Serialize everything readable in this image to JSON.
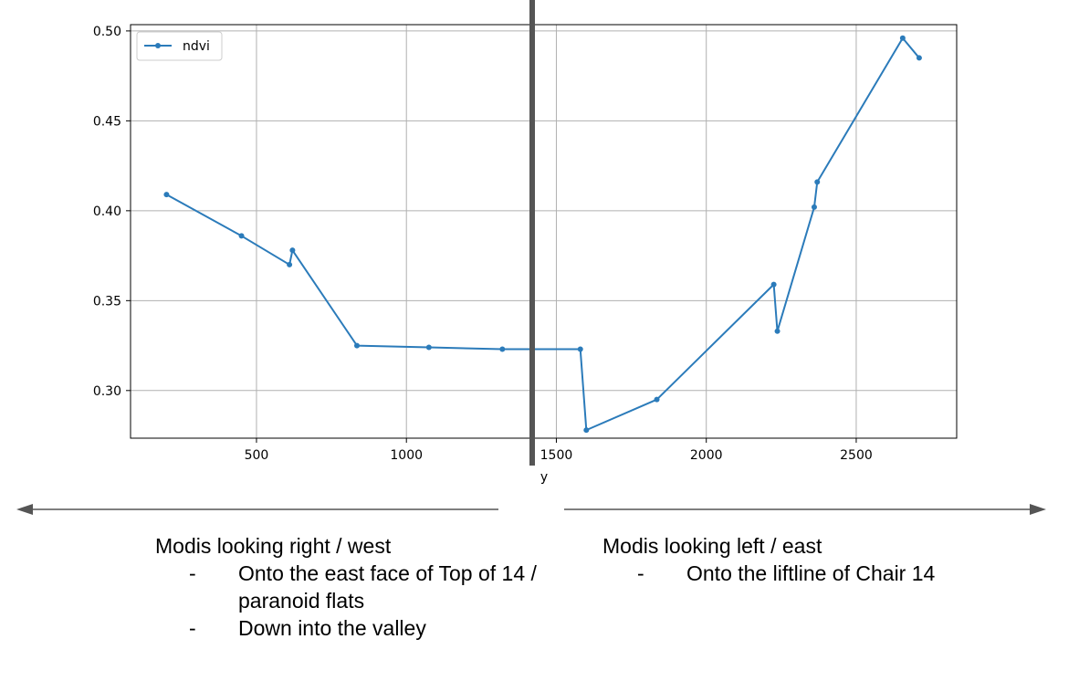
{
  "chart_data": {
    "type": "line",
    "xlabel": "y",
    "ylabel": "",
    "xlim": [
      80,
      2835
    ],
    "ylim": [
      0.2735,
      0.5035
    ],
    "grid": true,
    "legend_position": "upper-left",
    "x_ticks": [
      500,
      1000,
      1500,
      2000,
      2500
    ],
    "y_ticks": [
      0.3,
      0.35,
      0.4,
      0.45,
      0.5
    ],
    "x_tick_labels": [
      "500",
      "1000",
      "1500",
      "2000",
      "2500"
    ],
    "y_tick_labels": [
      "0.30",
      "0.35",
      "0.40",
      "0.45",
      "0.50"
    ],
    "series": [
      {
        "name": "ndvi",
        "color": "#2b7bba",
        "points": [
          [
            200,
            0.409
          ],
          [
            450,
            0.386
          ],
          [
            610,
            0.37
          ],
          [
            620,
            0.378
          ],
          [
            835,
            0.325
          ],
          [
            1075,
            0.324
          ],
          [
            1320,
            0.323
          ],
          [
            1580,
            0.323
          ],
          [
            1600,
            0.278
          ],
          [
            1835,
            0.295
          ],
          [
            2225,
            0.359
          ],
          [
            2237,
            0.333
          ],
          [
            2360,
            0.402
          ],
          [
            2370,
            0.416
          ],
          [
            2655,
            0.496
          ],
          [
            2710,
            0.485
          ]
        ]
      }
    ]
  },
  "annotations": {
    "divider_color": "#555555",
    "arrow_color": "#555555",
    "left": {
      "title": "Modis looking right / west",
      "bullets": [
        {
          "dash": "-",
          "lines": [
            "Onto the east face of Top of 14 /",
            "paranoid flats"
          ]
        },
        {
          "dash": "-",
          "lines": [
            "Down into the valley"
          ]
        }
      ]
    },
    "right": {
      "title": "Modis looking left / east",
      "bullets": [
        {
          "dash": "-",
          "lines": [
            "Onto the liftline of Chair 14"
          ]
        }
      ]
    }
  }
}
